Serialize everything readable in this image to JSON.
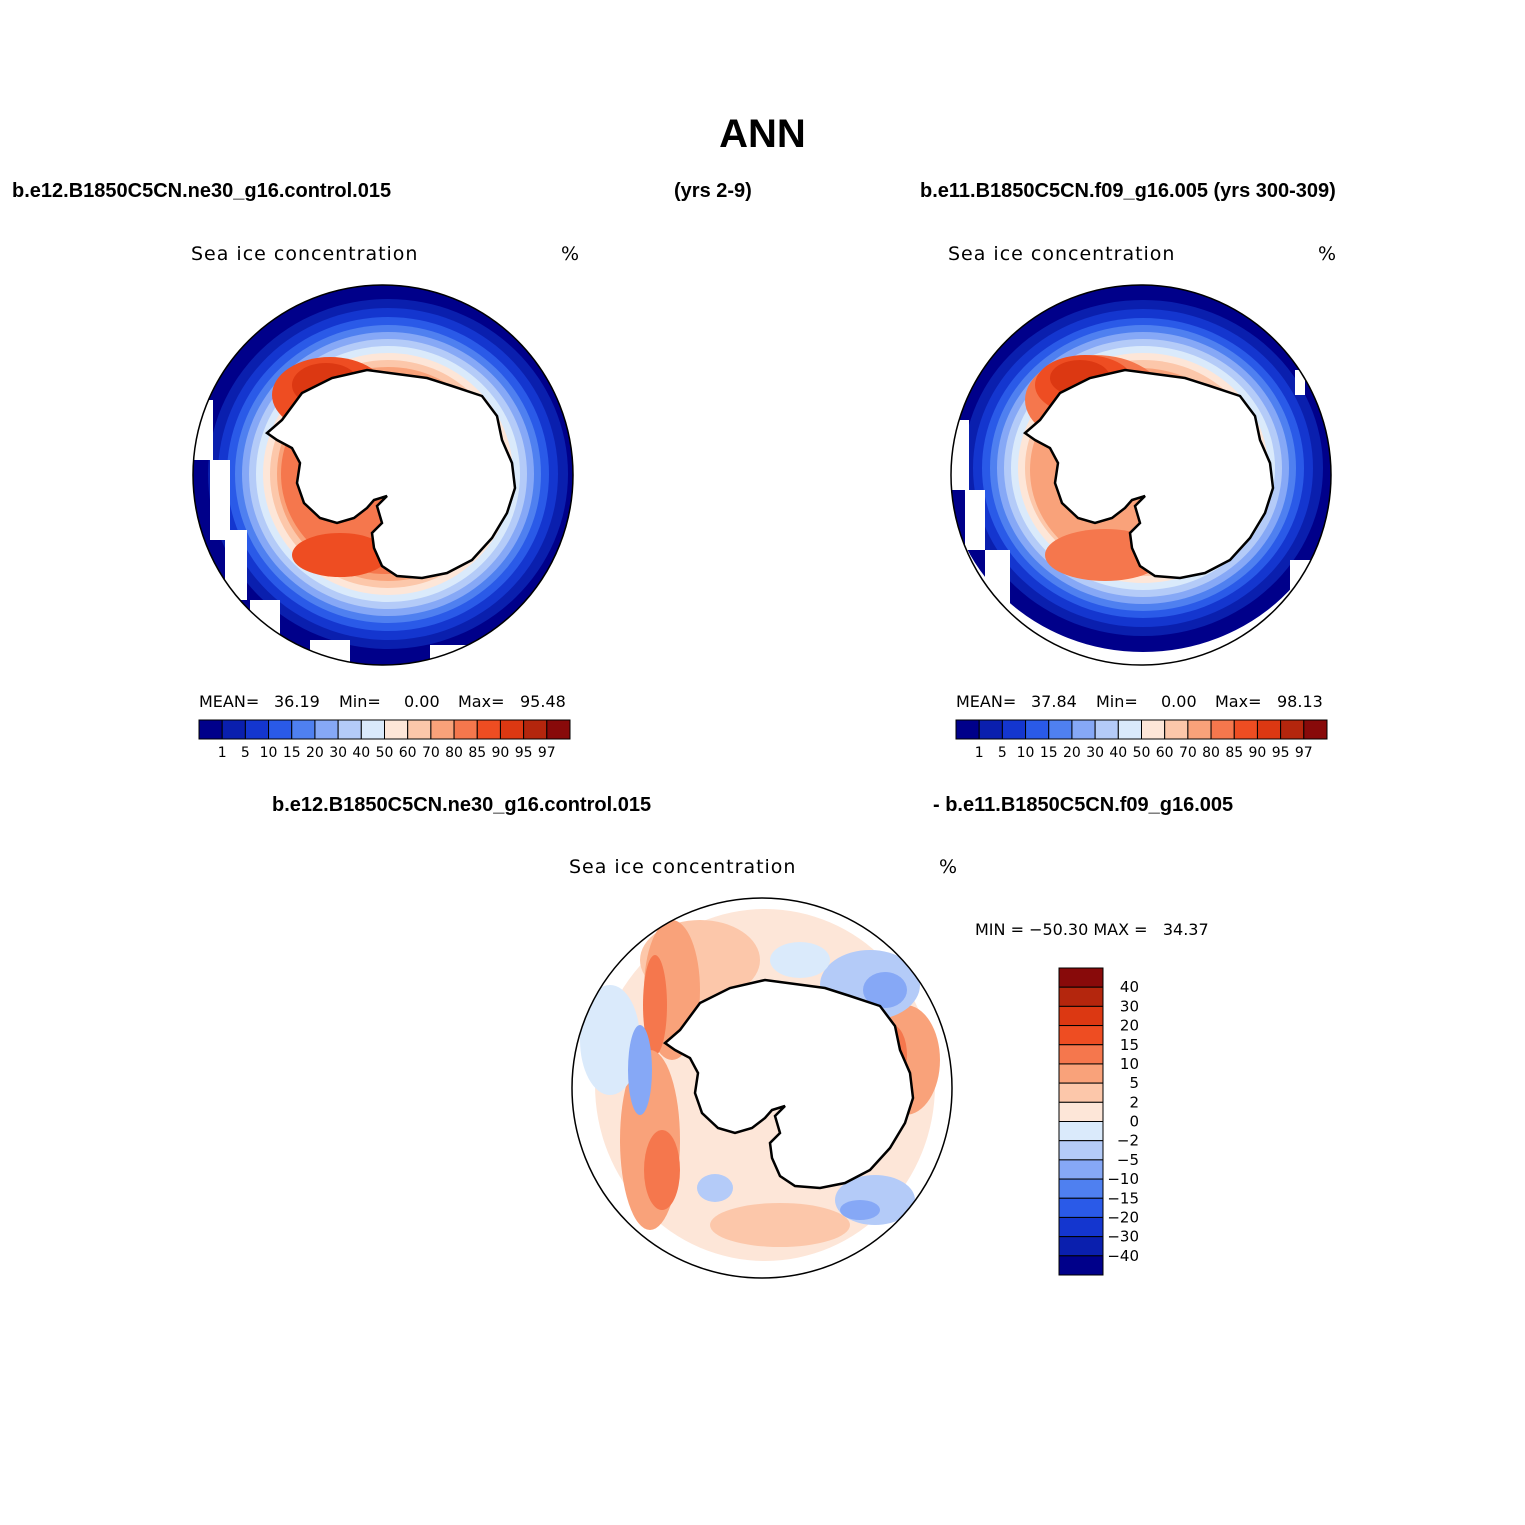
{
  "figure": {
    "title": "ANN",
    "case1_label": "b.e12.B1850C5CN.ne30_g16.control.015",
    "case1_years": "(yrs 2-9)",
    "case2_label": "b.e11.B1850C5CN.f09_g16.005 (yrs 300-309)",
    "diff_label_left": "b.e12.B1850C5CN.ne30_g16.control.015",
    "diff_label_right": "- b.e11.B1850C5CN.f09_g16.005"
  },
  "panels": {
    "p1": {
      "title": "Sea ice concentration",
      "units": "%",
      "mean_label": "MEAN=",
      "mean": "36.19",
      "min_label": "Min=",
      "min": "0.00",
      "max_label": "Max=",
      "max": "95.48"
    },
    "p2": {
      "title": "Sea ice concentration",
      "units": "%",
      "mean_label": "MEAN=",
      "mean": "37.84",
      "min_label": "Min=",
      "min": "0.00",
      "max_label": "Max=",
      "max": "98.13"
    },
    "p3": {
      "title": "Sea ice concentration",
      "units": "%",
      "minmax_text": "MIN = −50.30 MAX =   34.37"
    }
  },
  "colorbars": {
    "abs_ticks": [
      "1",
      "5",
      "10",
      "15",
      "20",
      "30",
      "40",
      "50",
      "60",
      "70",
      "80",
      "85",
      "90",
      "95",
      "97"
    ],
    "abs_colors": [
      "#00008a",
      "#0a1fae",
      "#1436cf",
      "#2a5ae8",
      "#4f80f0",
      "#86a8f6",
      "#b4cbf8",
      "#daeafb",
      "#fde6d8",
      "#fcc7aa",
      "#f9a27a",
      "#f5774d",
      "#ee4d22",
      "#dc3812",
      "#b4260d",
      "#880a0a"
    ],
    "diff_ticks": [
      "40",
      "30",
      "20",
      "15",
      "10",
      "5",
      "2",
      "0",
      "−2",
      "−5",
      "−10",
      "−15",
      "−20",
      "−30",
      "−40"
    ],
    "diff_colors": [
      "#880a0a",
      "#b4260d",
      "#dc3812",
      "#ee4d22",
      "#f5774d",
      "#f9a27a",
      "#fcc7aa",
      "#fde6d8",
      "#daeafb",
      "#b4cbf8",
      "#86a8f6",
      "#4f80f0",
      "#2a5ae8",
      "#1436cf",
      "#0a1fae",
      "#00008a"
    ]
  }
}
